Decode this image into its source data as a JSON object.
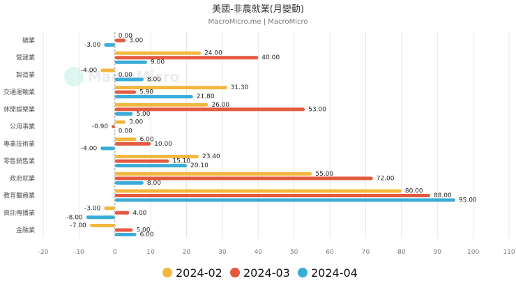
{
  "chart_data": {
    "type": "bar",
    "orientation": "horizontal",
    "title": "美國-非農就業(月變動)",
    "subtitle": "MacroMicro.me | MacroMicro",
    "watermark": "MacroMicro",
    "categories": [
      "礦業",
      "營建業",
      "製造業",
      "交通運輸業",
      "休閒娛樂業",
      "公用事業",
      "專業技術業",
      "零售銷售業",
      "政府就業",
      "教育醫療業",
      "資訊傳播業",
      "金融業"
    ],
    "series": [
      {
        "name": "2024-02",
        "color": "#f3b73e",
        "values": [
          0,
          24,
          -4,
          31.3,
          26,
          3,
          6,
          23.4,
          55,
          80,
          -3,
          -7
        ]
      },
      {
        "name": "2024-03",
        "color": "#e45a40",
        "values": [
          3,
          40,
          0,
          5.9,
          53,
          -0.9,
          10,
          15.1,
          72,
          88,
          4,
          5
        ]
      },
      {
        "name": "2024-04",
        "color": "#3aacd8",
        "values": [
          -3,
          9,
          8,
          21.8,
          5,
          0,
          -4,
          20.1,
          8,
          95,
          -8,
          6
        ]
      }
    ],
    "xlim": [
      -20,
      110
    ],
    "xticks": [
      -20,
      -10,
      0,
      10,
      20,
      30,
      40,
      50,
      60,
      70,
      80,
      90,
      100,
      110
    ],
    "grid": true,
    "legend": "bottom"
  }
}
